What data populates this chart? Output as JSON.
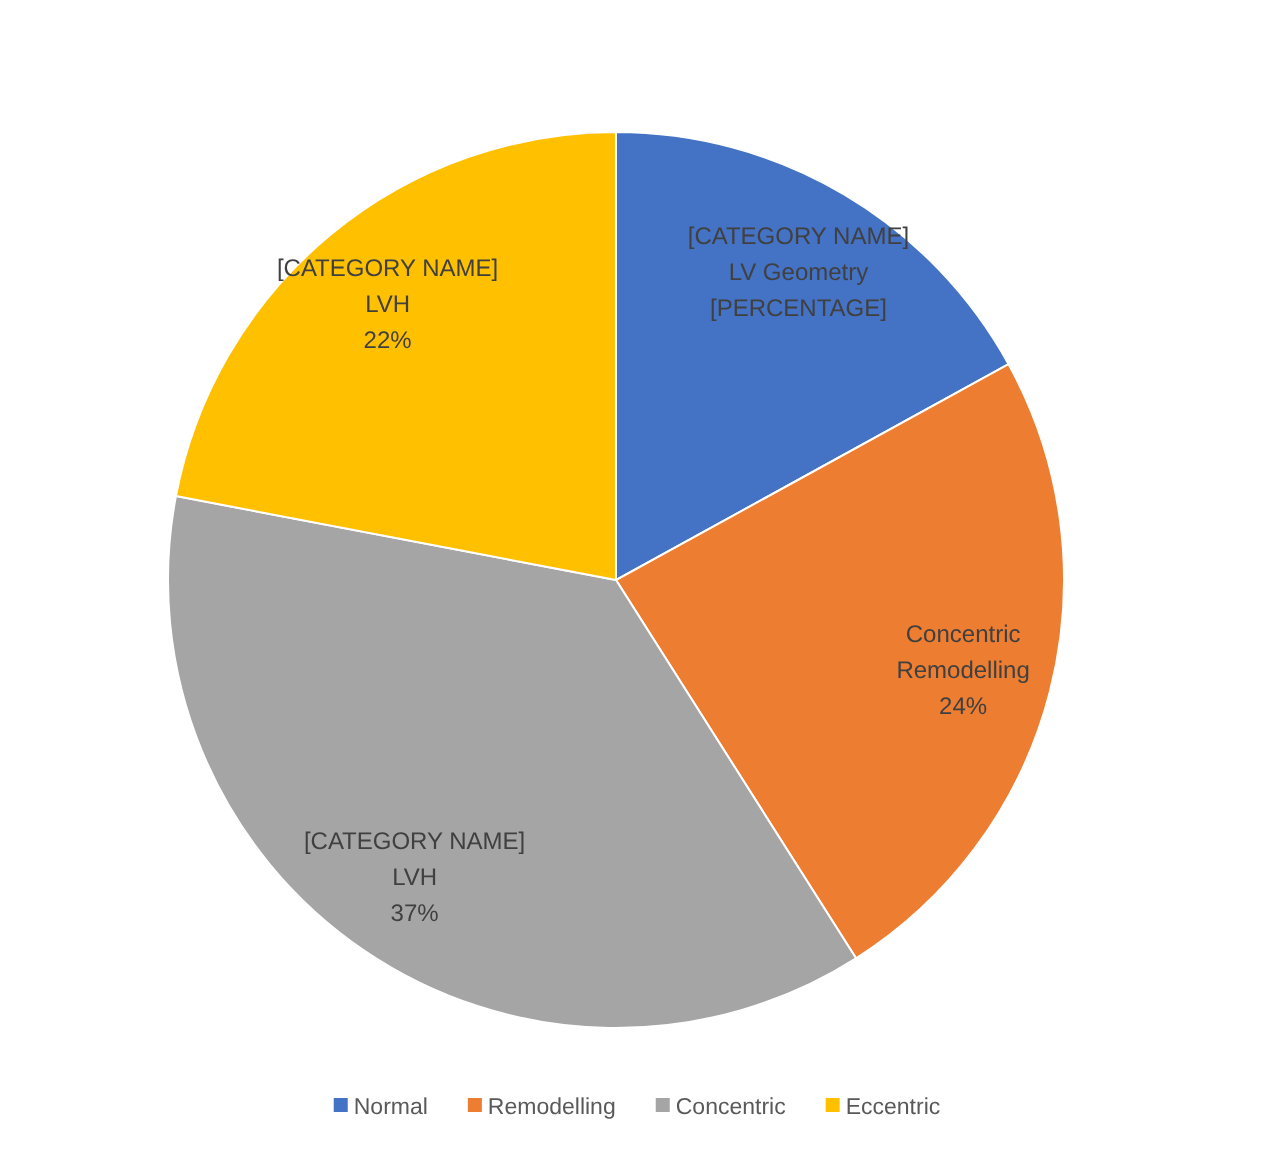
{
  "chart_data": {
    "type": "pie",
    "categories": [
      "Normal",
      "Remodelling",
      "Concentric",
      "Eccentric"
    ],
    "values": [
      17,
      24,
      37,
      22
    ],
    "colors": [
      "#4472c4",
      "#ed7d31",
      "#a5a5a5",
      "#ffc000"
    ],
    "value_labels": [
      "[CATEGORY NAME]\nLV Geometry\n[PERCENTAGE]",
      "Concentric\nRemodelling\n24%",
      "[CATEGORY NAME]\nLVH\n37%",
      "[CATEGORY NAME]\nLVH\n22%"
    ],
    "legend": "bottom"
  }
}
